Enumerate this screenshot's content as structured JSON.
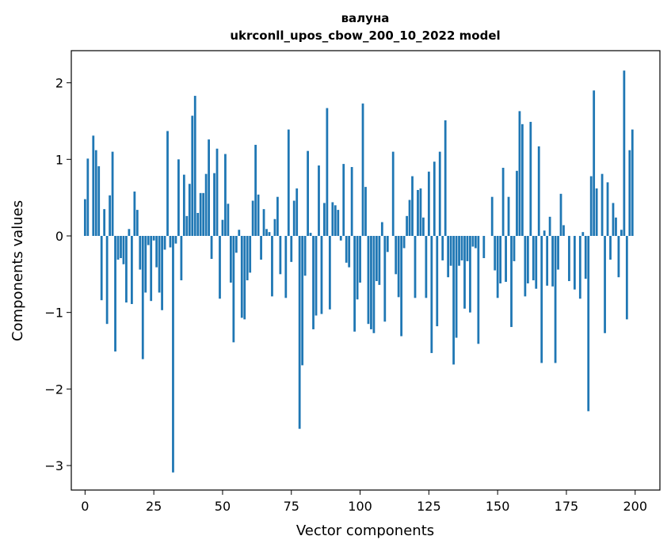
{
  "chart_data": {
    "type": "bar",
    "title": "валуна",
    "subtitle": "ukrconll_upos_cbow_200_10_2022 model",
    "xlabel": "Vector components",
    "ylabel": "Components values",
    "xlim": [
      -5,
      209
    ],
    "ylim": [
      -3.32,
      2.42
    ],
    "xticks": [
      0,
      25,
      50,
      75,
      100,
      125,
      150,
      175,
      200
    ],
    "yticks": [
      -3,
      -2,
      -1,
      0,
      1,
      2
    ],
    "ytick_labels": [
      "−3",
      "−2",
      "−1",
      "0",
      "1",
      "2"
    ],
    "grid": false,
    "color": "#1f77b4",
    "values": [
      0.48,
      1.01,
      0.0,
      1.31,
      1.12,
      0.91,
      -0.84,
      0.35,
      -1.15,
      0.53,
      1.1,
      -1.51,
      -0.31,
      -0.29,
      -0.37,
      -0.87,
      0.09,
      -0.89,
      0.58,
      0.34,
      -0.44,
      -1.61,
      -0.74,
      -0.12,
      -0.85,
      -0.06,
      -0.41,
      -0.74,
      -0.97,
      -0.18,
      1.37,
      -0.15,
      -3.09,
      -0.1,
      1.0,
      -0.58,
      0.8,
      0.26,
      0.68,
      1.57,
      1.83,
      0.3,
      0.56,
      0.56,
      0.81,
      1.26,
      -0.3,
      0.82,
      1.14,
      -0.82,
      0.21,
      1.07,
      0.42,
      -0.61,
      -1.39,
      -0.22,
      0.08,
      -1.07,
      -1.09,
      -0.58,
      -0.48,
      0.46,
      1.19,
      0.54,
      -0.31,
      0.35,
      0.09,
      0.05,
      -0.79,
      0.22,
      0.51,
      -0.5,
      0.0,
      -0.81,
      1.39,
      -0.34,
      0.46,
      0.62,
      -2.52,
      -1.69,
      -0.52,
      1.11,
      0.04,
      -1.22,
      -1.04,
      0.92,
      -1.02,
      0.43,
      1.67,
      -0.96,
      0.44,
      0.4,
      0.34,
      -0.06,
      0.94,
      -0.35,
      -0.41,
      0.9,
      -1.25,
      -0.83,
      -0.61,
      1.73,
      0.64,
      -1.15,
      -1.22,
      -1.27,
      -0.59,
      -0.64,
      0.18,
      -1.12,
      -0.21,
      0.0,
      1.1,
      -0.5,
      -0.8,
      -1.31,
      -0.16,
      0.26,
      0.47,
      0.78,
      -0.81,
      0.6,
      0.62,
      0.24,
      -0.81,
      0.84,
      -1.53,
      0.97,
      -1.18,
      1.1,
      -0.32,
      1.51,
      -0.54,
      -0.39,
      -1.68,
      -1.33,
      -0.39,
      -0.32,
      -0.95,
      -0.33,
      -1.0,
      -0.14,
      -0.16,
      -1.41,
      0.0,
      -0.29,
      0.0,
      0.0,
      0.51,
      -0.45,
      -0.81,
      -0.62,
      0.89,
      -0.6,
      0.51,
      -1.19,
      -0.33,
      0.85,
      1.63,
      1.46,
      -0.79,
      -0.62,
      1.49,
      -0.58,
      -0.69,
      1.17,
      -1.66,
      0.07,
      -0.65,
      0.25,
      -0.66,
      -1.66,
      -0.44,
      0.55,
      0.14,
      0.0,
      -0.59,
      0.0,
      -0.7,
      0.0,
      -0.82,
      0.05,
      -0.56,
      -2.29,
      0.78,
      1.9,
      0.62,
      0.0,
      0.81,
      -1.27,
      0.7,
      -0.31,
      0.43,
      0.24,
      -0.54,
      0.08,
      2.16,
      -1.09,
      1.12,
      1.39
    ]
  }
}
